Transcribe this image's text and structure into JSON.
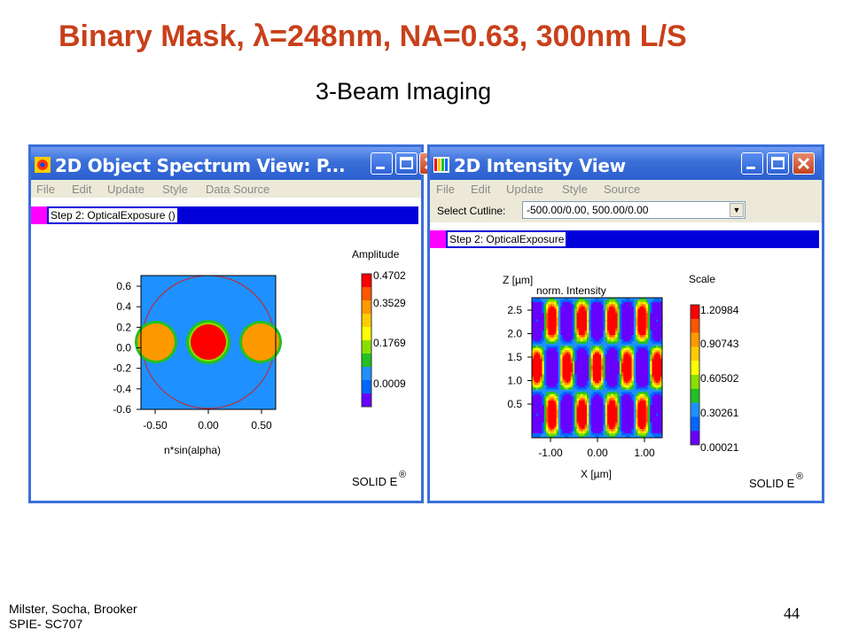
{
  "slide": {
    "title": "Binary Mask, λ=248nm, NA=0.63, 300nm L/S",
    "subtitle": "3-Beam Imaging",
    "authors_line1": "Milster, Socha, Brooker",
    "authors_line2": "SPIE- SC707",
    "page_number": "44"
  },
  "left_window": {
    "title": "2D Object Spectrum View: P...",
    "menu": [
      "File",
      "Edit",
      "Update",
      "Style",
      "Data Source"
    ],
    "step_label": "Step  2: OpticalExposure ()",
    "plot": {
      "xlabel": "n*sin(alpha)",
      "x_ticks": [
        "-0.50",
        "0.00",
        "0.50"
      ],
      "y_ticks": [
        "0.6",
        "0.4",
        "0.2",
        "0.0",
        "-0.2",
        "-0.4",
        "-0.6"
      ]
    },
    "legend": {
      "title": "Amplitude",
      "labels": [
        "0.4702",
        "0.3529",
        "0.1769",
        "0.0009"
      ]
    },
    "brand": "SOLID E",
    "brand_mark": "®",
    "colors": {
      "background": "#1e90ff",
      "side_orders": "#ff9900",
      "zero_order": "#ff0000",
      "ring": "#22c022"
    }
  },
  "right_window": {
    "title": "2D Intensity View",
    "menu": [
      "File",
      "Edit",
      "Update",
      "Style",
      "Source"
    ],
    "cutline_label": "Select Cutline:",
    "cutline_value": "-500.00/0.00, 500.00/0.00",
    "step_label": "Step  2: OpticalExposure",
    "plot": {
      "ylabel": "Z [µm]",
      "plot_label": "norm. Intensity",
      "xlabel": "X [µm]",
      "x_ticks": [
        "-1.00",
        "0.00",
        "1.00"
      ],
      "y_ticks": [
        "2.5",
        "2.0",
        "1.5",
        "1.0",
        "0.5"
      ]
    },
    "legend": {
      "title": "Scale",
      "labels": [
        "1.20984",
        "0.90743",
        "0.60502",
        "0.30261",
        "0.00021"
      ]
    },
    "brand": "SOLID E",
    "brand_mark": "®"
  },
  "colormap": [
    "#6600ff",
    "#0066ff",
    "#1e90ff",
    "#22c022",
    "#88e000",
    "#ffff00",
    "#ffcc00",
    "#ff9900",
    "#ff5500",
    "#ff0000"
  ]
}
